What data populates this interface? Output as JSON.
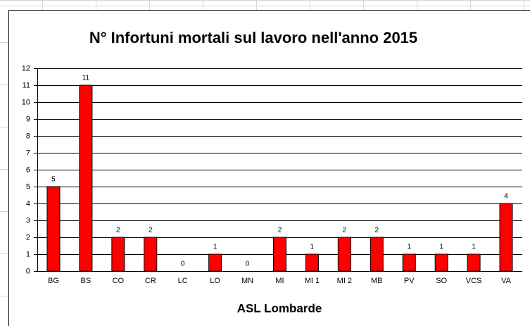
{
  "chart_data": {
    "type": "bar",
    "title": "N°  Infortuni mortali sul lavoro nell'anno 2015",
    "x_label": "ASL Lombarde",
    "categories": [
      "BG",
      "BS",
      "CO",
      "CR",
      "LC",
      "LO",
      "MN",
      "MI",
      "MI 1",
      "MI 2",
      "MB",
      "PV",
      "SO",
      "VCS",
      "VA"
    ],
    "values": [
      5,
      11,
      2,
      2,
      0,
      1,
      0,
      2,
      1,
      2,
      2,
      1,
      1,
      1,
      4
    ],
    "color": "#ff0000",
    "ylim": [
      0,
      12
    ],
    "yticks": [
      0,
      1,
      2,
      3,
      4,
      5,
      6,
      7,
      8,
      9,
      10,
      11,
      12
    ],
    "grid": true,
    "data_labels": true
  }
}
